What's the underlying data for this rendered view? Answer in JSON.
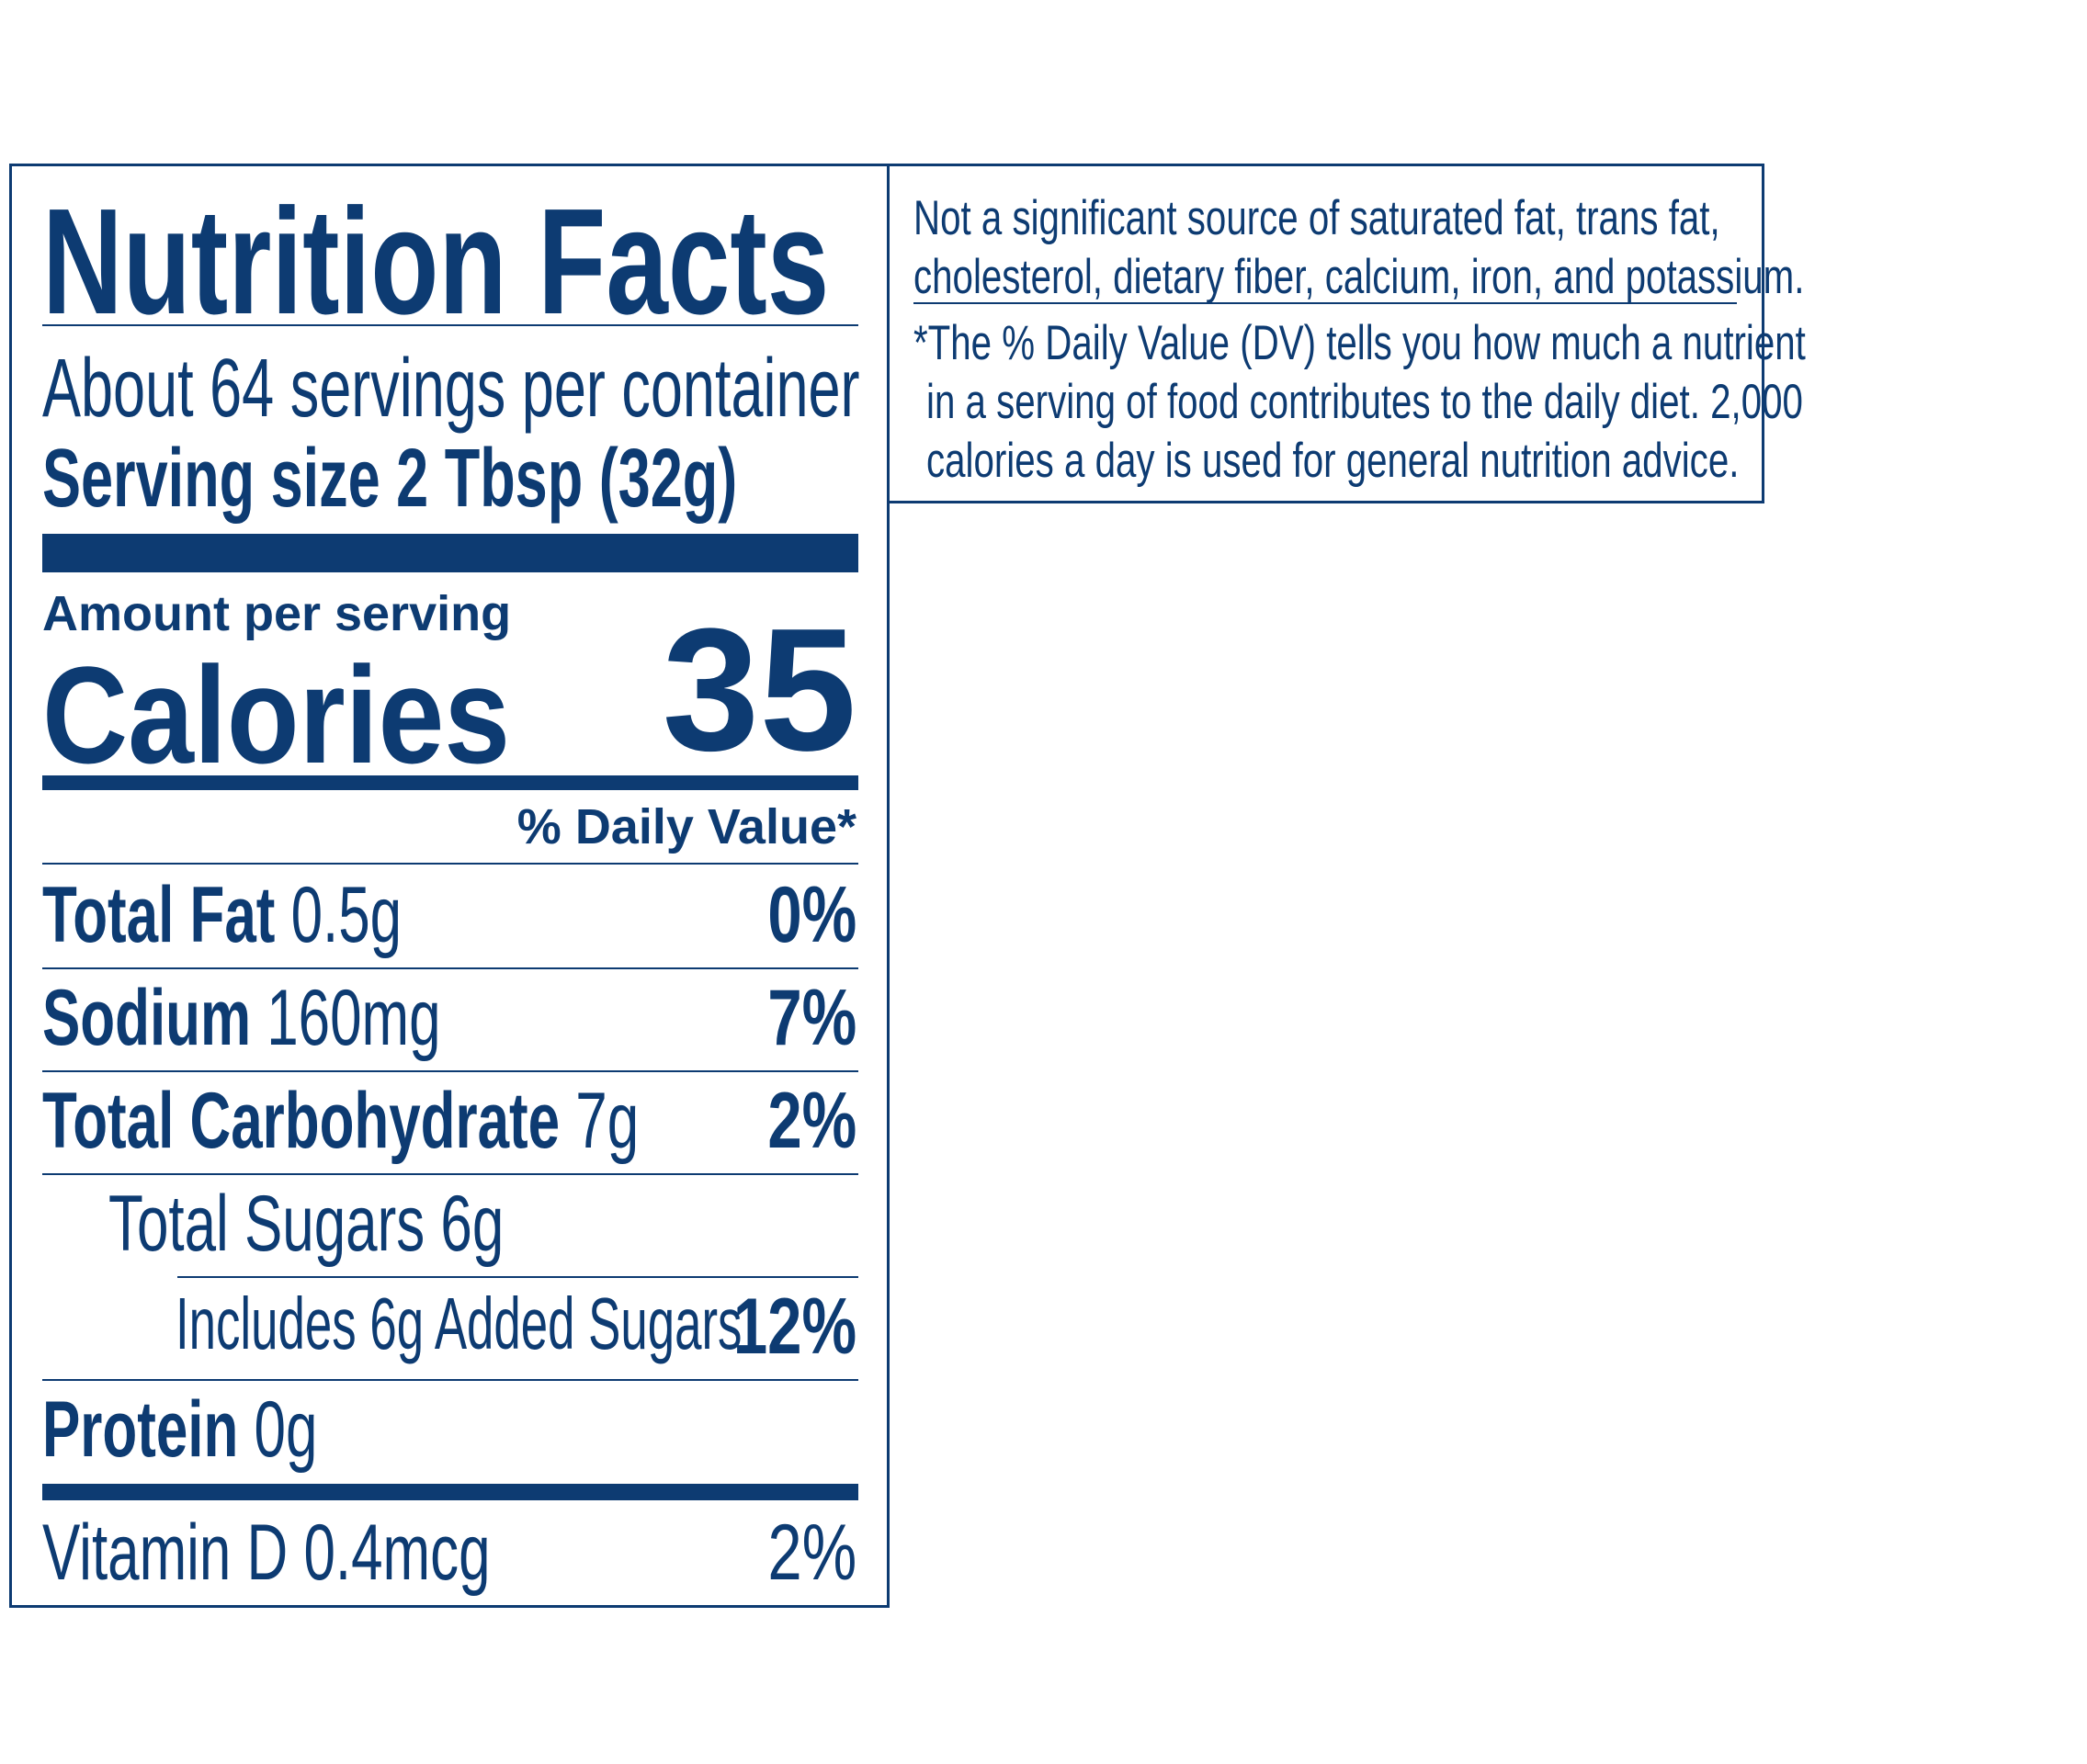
{
  "title": "Nutrition Facts",
  "servings_per_container": "About 64 servings per container",
  "serving_size": "Serving size 2 Tbsp (32g)",
  "amount_per_serving": "Amount per serving",
  "calories_label": "Calories",
  "calories_value": "35",
  "daily_value_header": "% Daily Value*",
  "nutrients": [
    {
      "name": "Total Fat",
      "amount": "0.5g",
      "dv": "0%"
    },
    {
      "name": "Sodium",
      "amount": "160mg",
      "dv": "7%"
    },
    {
      "name": "Total Carbohydrate",
      "amount": "7g",
      "dv": "2%"
    },
    {
      "name": "Total Sugars 6g",
      "amount": "",
      "dv": ""
    },
    {
      "name": "Includes 6g Added Sugars",
      "amount": "",
      "dv": "12%"
    },
    {
      "name": "Protein",
      "amount": "0g",
      "dv": ""
    },
    {
      "name": "Vitamin D 0.4mcg",
      "amount": "",
      "dv": "2%"
    }
  ],
  "notes": {
    "line1": "Not a significant source of saturated fat, trans fat,",
    "line2": "cholesterol, dietary fiber, calcium, iron, and potassium.",
    "line3": "*The % Daily Value (DV) tells you how much a nutrient",
    "line4": "in a serving of food contributes to the daily diet. 2,000",
    "line5": "calories a day is used for general nutrition advice."
  },
  "colors": {
    "ink": "#0d3b72",
    "background": "#ffffff"
  }
}
